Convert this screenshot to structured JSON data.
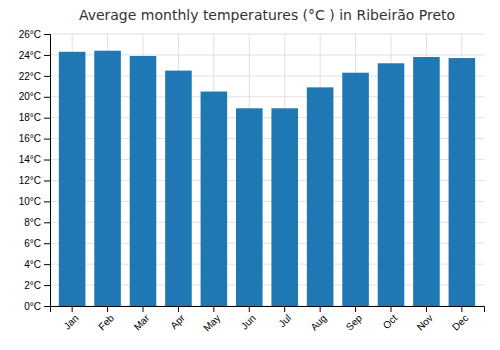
{
  "chart_data": {
    "type": "bar",
    "title": "Average monthly temperatures (°C ) in Ribeirão Preto",
    "categories": [
      "Jan",
      "Feb",
      "Mar",
      "Apr",
      "May",
      "Jun",
      "Jul",
      "Aug",
      "Sep",
      "Oct",
      "Nov",
      "Dec"
    ],
    "values": [
      24.3,
      24.4,
      23.9,
      22.5,
      20.5,
      18.9,
      18.9,
      20.9,
      22.3,
      23.2,
      23.8,
      23.7
    ],
    "ylim": [
      0,
      26
    ],
    "yticks": [
      {
        "value": 0,
        "label": "0°C"
      },
      {
        "value": 2,
        "label": "2°C"
      },
      {
        "value": 4,
        "label": "4°C"
      },
      {
        "value": 6,
        "label": "6°C"
      },
      {
        "value": 8,
        "label": "8°C"
      },
      {
        "value": 10,
        "label": "10°C"
      },
      {
        "value": 12,
        "label": "12°C"
      },
      {
        "value": 14,
        "label": "14°C"
      },
      {
        "value": 16,
        "label": "16°C"
      },
      {
        "value": 18,
        "label": "18°C"
      },
      {
        "value": 20,
        "label": "20°C"
      },
      {
        "value": 22,
        "label": "22°C"
      },
      {
        "value": 24,
        "label": "24°C"
      },
      {
        "value": 26,
        "label": "26°C"
      }
    ],
    "grid": true
  }
}
